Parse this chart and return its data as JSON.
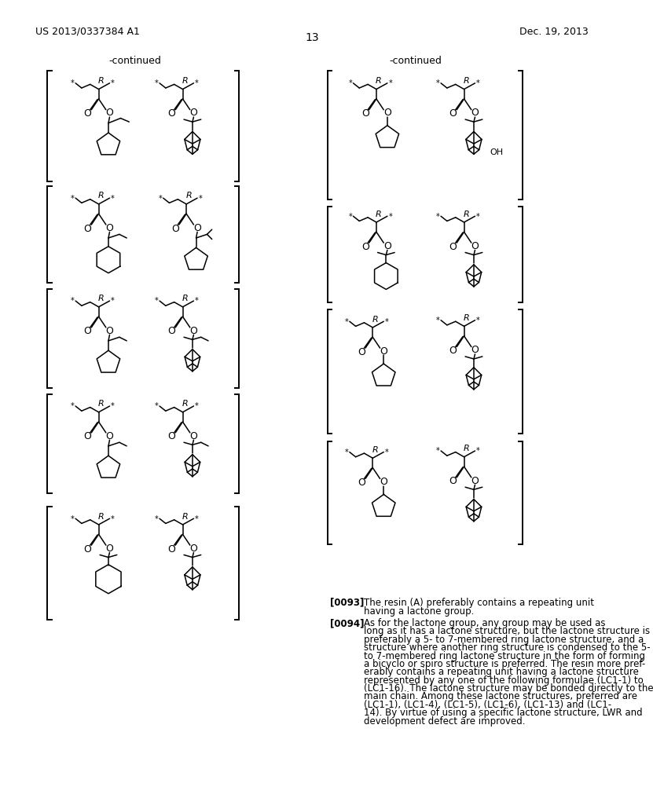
{
  "background": "#ffffff",
  "header_left": "US 2013/0337384 A1",
  "header_right": "Dec. 19, 2013",
  "page_number": "13",
  "continued_left": "-continued",
  "continued_right": "-continued"
}
